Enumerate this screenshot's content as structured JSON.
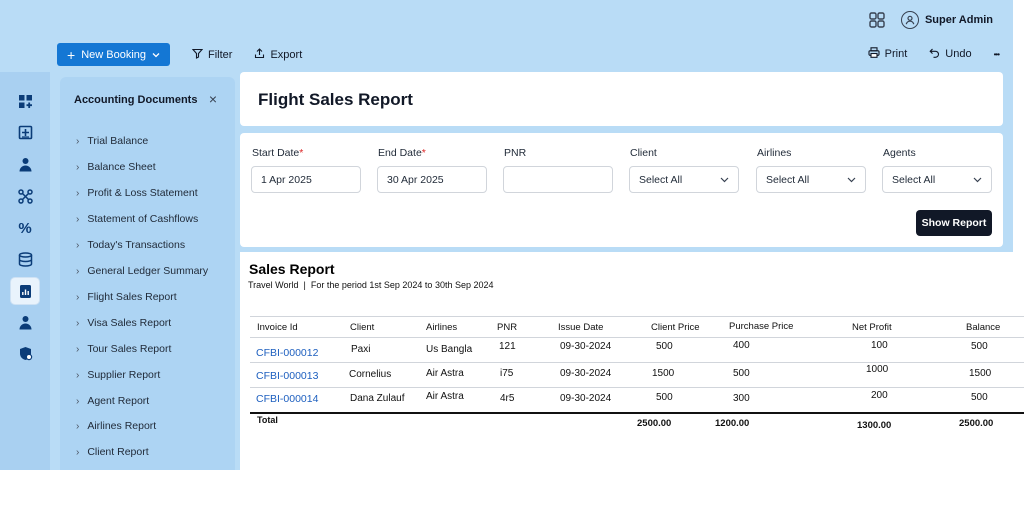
{
  "header": {
    "user_name": "Super Admin",
    "icons": [
      "apps-grid-icon",
      "user-icon"
    ]
  },
  "toolbar": {
    "new_booking_label": "New Booking",
    "filter_label": "Filter",
    "export_label": "Export",
    "print_label": "Print",
    "undo_label": "Undo",
    "more_label": "•••"
  },
  "side_panel": {
    "title": "Accounting Documents",
    "close_label": "×",
    "items": [
      {
        "label": "Trial Balance"
      },
      {
        "label": "Balance Sheet"
      },
      {
        "label": "Profit & Loss Statement"
      },
      {
        "label": "Statement of Cashflows"
      },
      {
        "label": "Today's Transactions"
      },
      {
        "label": "General Ledger Summary"
      },
      {
        "label": "Flight Sales Report"
      },
      {
        "label": "Visa Sales Report"
      },
      {
        "label": "Tour Sales Report"
      },
      {
        "label": "Supplier Report"
      },
      {
        "label": "Agent Report"
      },
      {
        "label": "Airlines Report"
      },
      {
        "label": "Client Report"
      }
    ]
  },
  "page": {
    "title": "Flight Sales Report"
  },
  "filters": {
    "start_date": {
      "label": "Start Date",
      "required": "*",
      "value": "1 Apr 2025"
    },
    "end_date": {
      "label": "End Date",
      "required": "*",
      "value": "30 Apr 2025"
    },
    "pnr": {
      "label": "PNR",
      "value": ""
    },
    "client": {
      "label": "Client",
      "value": "Select All"
    },
    "airlines": {
      "label": "Airlines",
      "value": "Select All"
    },
    "agents": {
      "label": "Agents",
      "value": "Select All"
    },
    "show_button": "Show Report"
  },
  "report": {
    "title": "Sales Report",
    "company": "Travel World",
    "separator": "|",
    "period": "For the period 1st Sep 2024 to 30th Sep 2024",
    "columns": [
      "Invoice Id",
      "Client",
      "Airlines",
      "PNR",
      "Issue Date",
      "Client Price",
      "Purchase Price",
      "Net Profit",
      "Balance"
    ],
    "rows": [
      {
        "invoice": "CFBI-000012",
        "client": "Paxi",
        "airline": "Us Bangla",
        "pnr": "121",
        "date": "09-30-2024",
        "client_price": "500",
        "purchase_price": "400",
        "net_profit": "100",
        "balance": "500"
      },
      {
        "invoice": "CFBI-000013",
        "client": "Cornelius",
        "airline": "Air Astra",
        "pnr": "i75",
        "date": "09-30-2024",
        "client_price": "1500",
        "purchase_price": "500",
        "net_profit": "1000",
        "balance": "1500"
      },
      {
        "invoice": "CFBI-000014",
        "client": "Dana Zulauf",
        "airline": "Air Astra",
        "pnr": "4r5",
        "date": "09-30-2024",
        "client_price": "500",
        "purchase_price": "300",
        "net_profit": "200",
        "balance": "500"
      }
    ],
    "totals": {
      "label": "Total",
      "client_price": "2500.00",
      "purchase_price": "1200.00",
      "net_profit": "1300.00",
      "balance": "2500.00"
    }
  },
  "colors": {
    "app_background": "#b9dcf6",
    "primary": "#1477d4",
    "dark_button": "#111827",
    "link": "#1d5fbf",
    "required": "#dc2626"
  }
}
